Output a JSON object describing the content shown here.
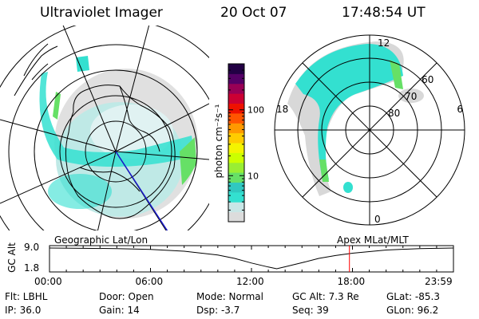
{
  "header": {
    "instrument": "Ultraviolet Imager",
    "date": "20 Oct 07",
    "time": "17:48:54 UT"
  },
  "colorbar": {
    "unit_label": "photon cm⁻²s⁻¹",
    "ticks": [
      {
        "value": 100,
        "label": "100"
      },
      {
        "value": 10,
        "label": "10"
      }
    ],
    "range": [
      2,
      500
    ],
    "scale": "log",
    "colors": [
      "#dcdcdc",
      "#c8e6e6",
      "#33e0d0",
      "#30c8c0",
      "#66e066",
      "#99ee33",
      "#ccff00",
      "#f4f400",
      "#ffcc00",
      "#ff9900",
      "#ff5500",
      "#ee1100",
      "#cc0033",
      "#990055",
      "#550066",
      "#220044"
    ]
  },
  "geo_map": {
    "label": "Geographic Lat/Lon"
  },
  "polar_plot": {
    "label": "Apex  MLat/MLT",
    "mlt_labels": [
      {
        "hour": 12,
        "label": "12"
      },
      {
        "hour": 18,
        "label": "18"
      },
      {
        "hour": 6,
        "label": "6"
      },
      {
        "hour": 0,
        "label": "0"
      }
    ],
    "lat_labels": [
      {
        "lat": 60,
        "label": "60"
      },
      {
        "lat": 70,
        "label": "70"
      },
      {
        "lat": 80,
        "label": "80"
      }
    ]
  },
  "chart_data": {
    "type": "line",
    "ylabel": "GC Alt",
    "yticks": [
      "9.0",
      "1.8"
    ],
    "ylim": [
      1.8,
      9.0
    ],
    "xticks": [
      "00:00",
      "06:00",
      "12:00",
      "18:00",
      "23:59"
    ],
    "xlim_hours": [
      0,
      24
    ],
    "x": [
      0,
      2,
      4,
      6,
      8,
      10,
      11,
      12,
      13,
      13.5,
      14,
      15,
      16,
      17,
      18,
      20,
      22,
      24
    ],
    "y": [
      9.0,
      8.9,
      8.8,
      8.5,
      7.9,
      6.6,
      5.4,
      3.8,
      2.4,
      1.8,
      2.5,
      3.9,
      5.4,
      6.4,
      7.2,
      8.3,
      8.8,
      9.0
    ],
    "current_time_hours": 17.82
  },
  "info": {
    "filter": "Flt: LBHL",
    "ip": "IP: 36.0",
    "door": "Door: Open",
    "gain": "Gain: 14",
    "mode": "Mode: Normal",
    "dsp": "Dsp:    -3.7",
    "gc_alt": "GC Alt: 7.3 Re",
    "seq": "Seq: 39",
    "glat": "GLat:  -85.3",
    "glon": "GLon:   96.2"
  }
}
